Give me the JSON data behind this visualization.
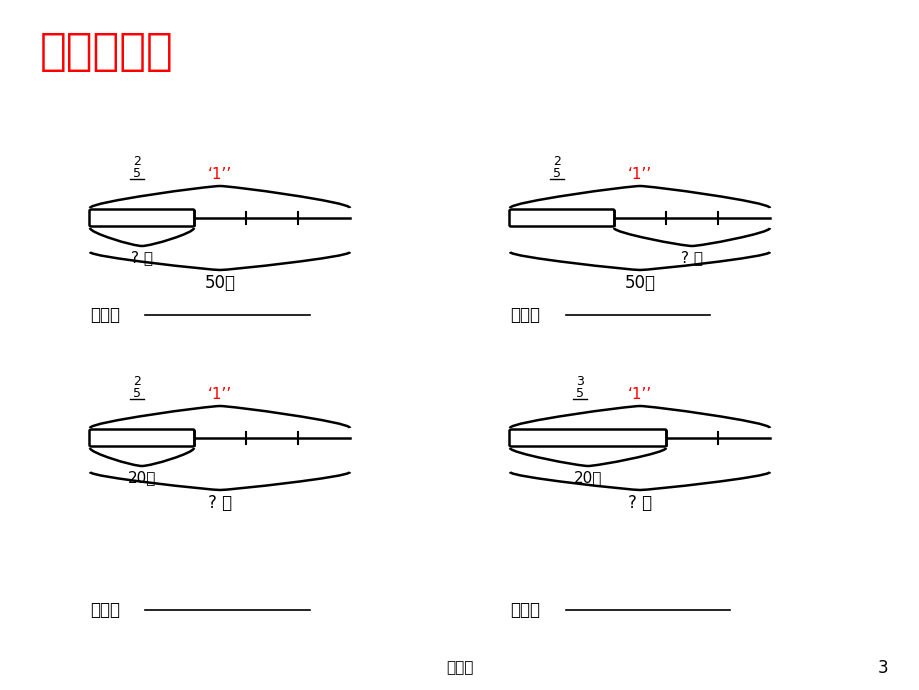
{
  "title": "看图列式：",
  "title_color": "#FF0000",
  "bg_color": "#FFFFFF",
  "footer_text": "公开课",
  "page_num": "3",
  "diagrams": [
    {
      "id": "top_left",
      "fraction_num": "2",
      "fraction_den": "5",
      "brace_top_label": "‘1’’",
      "small_brace_label": "? 米",
      "big_brace_label": "50米",
      "small_brace_side": "left",
      "listshi_label": "列式："
    },
    {
      "id": "top_right",
      "fraction_num": "2",
      "fraction_den": "5",
      "brace_top_label": "‘1’’",
      "small_brace_label": "? 米",
      "big_brace_label": "50米",
      "small_brace_side": "right",
      "listshi_label": "列式："
    },
    {
      "id": "bottom_left",
      "fraction_num": "2",
      "fraction_den": "5",
      "brace_top_label": "‘1’’",
      "small_brace_label": "20米",
      "big_brace_label": "? 米",
      "small_brace_side": "left",
      "listshi_label": "列式："
    },
    {
      "id": "bottom_right",
      "fraction_num": "3",
      "fraction_den": "5",
      "brace_top_label": "‘1’’",
      "small_brace_label": "20米",
      "big_brace_label": "? 米",
      "small_brace_side": "left",
      "listshi_label": "列式："
    }
  ]
}
